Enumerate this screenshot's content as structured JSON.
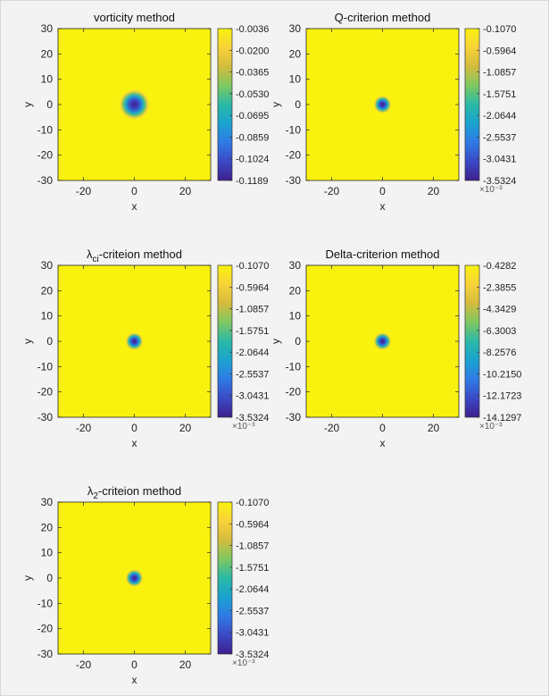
{
  "colors": {
    "background": "#f3f3f3",
    "field": "#f9f20f",
    "colormap": [
      "#3e1f8e",
      "#3b49c5",
      "#2f7ae6",
      "#1ba3d0",
      "#2ab9a6",
      "#7ec861",
      "#d4bc3d",
      "#f8d23a",
      "#f9f20f"
    ]
  },
  "chart_data": [
    {
      "type": "heatmap",
      "title": "vorticity method",
      "xlabel": "x",
      "ylabel": "y",
      "xlim": [
        -30,
        30
      ],
      "ylim": [
        -30,
        30
      ],
      "xticks": [
        "-20",
        "0",
        "20"
      ],
      "yticks": [
        "30",
        "20",
        "10",
        "0",
        "-10",
        "-20",
        "-30"
      ],
      "colorbar_ticks": [
        "-0.0036",
        "-0.0200",
        "-0.0365",
        "-0.0530",
        "-0.0695",
        "-0.0859",
        "-0.1024",
        "-0.1189"
      ],
      "colorbar_exponent": "",
      "vortex_center": [
        0,
        0
      ],
      "vortex_radius": 6
    },
    {
      "type": "heatmap",
      "title": "Q-criterion method",
      "xlabel": "x",
      "ylabel": "y",
      "xlim": [
        -30,
        30
      ],
      "ylim": [
        -30,
        30
      ],
      "xticks": [
        "-20",
        "0",
        "20"
      ],
      "yticks": [
        "30",
        "20",
        "10",
        "0",
        "-10",
        "-20",
        "-30"
      ],
      "colorbar_ticks": [
        "-0.1070",
        "-0.5964",
        "-1.0857",
        "-1.5751",
        "-2.0644",
        "-2.5537",
        "-3.0431",
        "-3.5324"
      ],
      "colorbar_exponent": "×10⁻³",
      "vortex_center": [
        0,
        0
      ],
      "vortex_radius": 3.5
    },
    {
      "type": "heatmap",
      "title_symbol": "λ",
      "title_sub": "ci",
      "title_rest": "-criteion method",
      "xlabel": "x",
      "ylabel": "y",
      "xlim": [
        -30,
        30
      ],
      "ylim": [
        -30,
        30
      ],
      "xticks": [
        "-20",
        "0",
        "20"
      ],
      "yticks": [
        "30",
        "20",
        "10",
        "0",
        "-10",
        "-20",
        "-30"
      ],
      "colorbar_ticks": [
        "-0.1070",
        "-0.5964",
        "-1.0857",
        "-1.5751",
        "-2.0644",
        "-2.5537",
        "-3.0431",
        "-3.5324"
      ],
      "colorbar_exponent": "×10⁻³",
      "vortex_center": [
        0,
        0
      ],
      "vortex_radius": 3.5
    },
    {
      "type": "heatmap",
      "title": "Delta-criterion method",
      "xlabel": "x",
      "ylabel": "y",
      "xlim": [
        -30,
        30
      ],
      "ylim": [
        -30,
        30
      ],
      "xticks": [
        "-20",
        "0",
        "20"
      ],
      "yticks": [
        "30",
        "20",
        "10",
        "0",
        "-10",
        "-20",
        "-30"
      ],
      "colorbar_ticks": [
        "-0.4282",
        "-2.3855",
        "-4.3429",
        "-6.3003",
        "-8.2576",
        "-10.2150",
        "-12.1723",
        "-14.1297"
      ],
      "colorbar_exponent": "×10⁻³",
      "vortex_center": [
        0,
        0
      ],
      "vortex_radius": 3.5
    },
    {
      "type": "heatmap",
      "title_symbol": "λ",
      "title_sub": "2",
      "title_rest": "-criteion method",
      "xlabel": "x",
      "ylabel": "y",
      "xlim": [
        -30,
        30
      ],
      "ylim": [
        -30,
        30
      ],
      "xticks": [
        "-20",
        "0",
        "20"
      ],
      "yticks": [
        "30",
        "20",
        "10",
        "0",
        "-10",
        "-20",
        "-30"
      ],
      "colorbar_ticks": [
        "-0.1070",
        "-0.5964",
        "-1.0857",
        "-1.5751",
        "-2.0644",
        "-2.5537",
        "-3.0431",
        "-3.5324"
      ],
      "colorbar_exponent": "×10⁻³",
      "vortex_center": [
        0,
        0
      ],
      "vortex_radius": 3.5
    }
  ]
}
